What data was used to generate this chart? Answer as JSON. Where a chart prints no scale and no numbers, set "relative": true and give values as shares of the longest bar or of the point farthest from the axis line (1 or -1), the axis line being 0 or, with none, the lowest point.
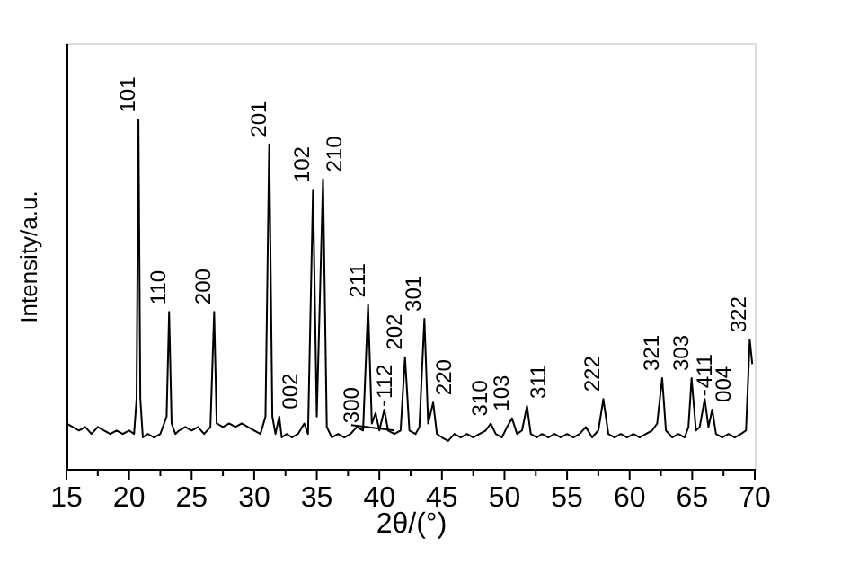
{
  "chart_data": {
    "type": "line",
    "xlabel": "2θ/(°)",
    "ylabel": "Intensity/a.u.",
    "relative": true,
    "tick_labels": "x",
    "grid": false,
    "marker": "none",
    "line_style": "solid",
    "xlim": [
      15,
      70
    ],
    "xticks": [
      15,
      {
        "value": 17.5,
        "label": null
      },
      20,
      {
        "value": 22.5,
        "label": null
      },
      25,
      {
        "value": 27.5,
        "label": null
      },
      30,
      {
        "value": 32.5,
        "label": null
      },
      35,
      {
        "value": 37.5,
        "label": null
      },
      40,
      {
        "value": 42.5,
        "label": null
      },
      45,
      {
        "value": 47.5,
        "label": null
      },
      50,
      {
        "value": 52.5,
        "label": null
      },
      55,
      {
        "value": 57.5,
        "label": null
      },
      60,
      {
        "value": 62.5,
        "label": null
      },
      65,
      {
        "value": 67.5,
        "label": null
      },
      70
    ],
    "x": [
      15,
      15.5,
      16,
      16.5,
      17,
      17.5,
      18,
      18.5,
      19,
      19.5,
      20,
      20.4,
      20.6,
      20.75,
      20.9,
      21.1,
      21.5,
      22,
      22.5,
      23.0,
      23.2,
      23.4,
      23.7,
      24,
      24.5,
      25,
      25.5,
      26,
      26.5,
      26.8,
      27.0,
      27.5,
      28,
      28.5,
      29,
      29.5,
      30,
      30.5,
      30.9,
      31.2,
      31.45,
      31.7,
      32.0,
      32.2,
      32.6,
      33,
      33.5,
      34,
      34.3,
      34.7,
      35.0,
      35.5,
      35.8,
      36.2,
      36.7,
      37.2,
      37.7,
      38.2,
      38.7,
      39.1,
      39.4,
      39.7,
      40.0,
      40.4,
      40.7,
      41.2,
      41.7,
      42.05,
      42.4,
      42.9,
      43.2,
      43.6,
      43.9,
      44.3,
      44.6,
      45,
      45.5,
      46,
      46.5,
      47,
      47.5,
      48,
      48.5,
      48.9,
      49.3,
      49.8,
      50.2,
      50.6,
      51.0,
      51.4,
      51.8,
      52.1,
      52.6,
      53,
      53.5,
      54,
      54.5,
      55,
      55.5,
      56,
      56.5,
      57,
      57.5,
      57.9,
      58.3,
      58.8,
      59.3,
      59.8,
      60.3,
      60.8,
      61.3,
      61.8,
      62.2,
      62.6,
      62.9,
      63.4,
      63.9,
      64.4,
      64.7,
      64.95,
      65.3,
      65.6,
      66.0,
      66.3,
      66.6,
      66.9,
      67.4,
      67.9,
      68.4,
      68.9,
      69.3,
      69.6,
      69.8
    ],
    "series": [
      {
        "color": "#000000",
        "values": [
          0.13,
          0.12,
          0.11,
          0.12,
          0.1,
          0.12,
          0.11,
          0.1,
          0.11,
          0.1,
          0.11,
          0.1,
          0.2,
          1.0,
          0.2,
          0.09,
          0.1,
          0.09,
          0.1,
          0.15,
          0.45,
          0.13,
          0.1,
          0.11,
          0.12,
          0.11,
          0.12,
          0.1,
          0.12,
          0.45,
          0.13,
          0.12,
          0.13,
          0.12,
          0.13,
          0.12,
          0.11,
          0.1,
          0.15,
          0.93,
          0.15,
          0.1,
          0.15,
          0.09,
          0.1,
          0.09,
          0.1,
          0.13,
          0.1,
          0.8,
          0.15,
          0.83,
          0.12,
          0.09,
          0.1,
          0.09,
          0.1,
          0.12,
          0.11,
          0.47,
          0.13,
          0.16,
          0.11,
          0.17,
          0.11,
          0.1,
          0.11,
          0.32,
          0.11,
          0.1,
          0.12,
          0.43,
          0.13,
          0.19,
          0.1,
          0.09,
          0.08,
          0.1,
          0.09,
          0.1,
          0.09,
          0.1,
          0.11,
          0.13,
          0.1,
          0.09,
          0.12,
          0.145,
          0.1,
          0.11,
          0.18,
          0.1,
          0.09,
          0.1,
          0.09,
          0.1,
          0.09,
          0.1,
          0.09,
          0.1,
          0.12,
          0.09,
          0.11,
          0.2,
          0.1,
          0.09,
          0.1,
          0.09,
          0.1,
          0.09,
          0.1,
          0.11,
          0.13,
          0.26,
          0.11,
          0.09,
          0.1,
          0.09,
          0.12,
          0.26,
          0.11,
          0.12,
          0.2,
          0.12,
          0.17,
          0.1,
          0.09,
          0.1,
          0.09,
          0.1,
          0.11,
          0.37,
          0.3
        ]
      }
    ],
    "annotations": [
      {
        "text": "101",
        "x": 20.75,
        "y": 1.0
      },
      {
        "text": "110",
        "x": 23.2,
        "y": 0.45
      },
      {
        "text": "200",
        "x": 26.8,
        "y": 0.45
      },
      {
        "text": "201",
        "x": 31.2,
        "y": 0.93
      },
      {
        "text": "002",
        "x": 32.0,
        "y": 0.15
      },
      {
        "text": "102",
        "x": 34.7,
        "y": 0.8
      },
      {
        "text": "210",
        "x": 35.5,
        "y": 0.83
      },
      {
        "text": "211",
        "x": 39.1,
        "y": 0.47
      },
      {
        "text": "300",
        "x": 41.2,
        "y": 0.1
      },
      {
        "text": "112",
        "x": 40.4,
        "y": 0.17
      },
      {
        "text": "202",
        "x": 42.05,
        "y": 0.32
      },
      {
        "text": "301",
        "x": 43.6,
        "y": 0.43
      },
      {
        "text": "220",
        "x": 44.3,
        "y": 0.19
      },
      {
        "text": "310",
        "x": 48.9,
        "y": 0.13
      },
      {
        "text": "103",
        "x": 50.6,
        "y": 0.145
      },
      {
        "text": "311",
        "x": 51.8,
        "y": 0.18
      },
      {
        "text": "222",
        "x": 57.9,
        "y": 0.2
      },
      {
        "text": "321",
        "x": 62.6,
        "y": 0.26
      },
      {
        "text": "303",
        "x": 64.95,
        "y": 0.26
      },
      {
        "text": "004",
        "x": 66.6,
        "y": 0.17
      },
      {
        "text": "411",
        "x": 66.0,
        "y": 0.2
      },
      {
        "text": "322",
        "x": 69.6,
        "y": 0.37
      }
    ]
  }
}
